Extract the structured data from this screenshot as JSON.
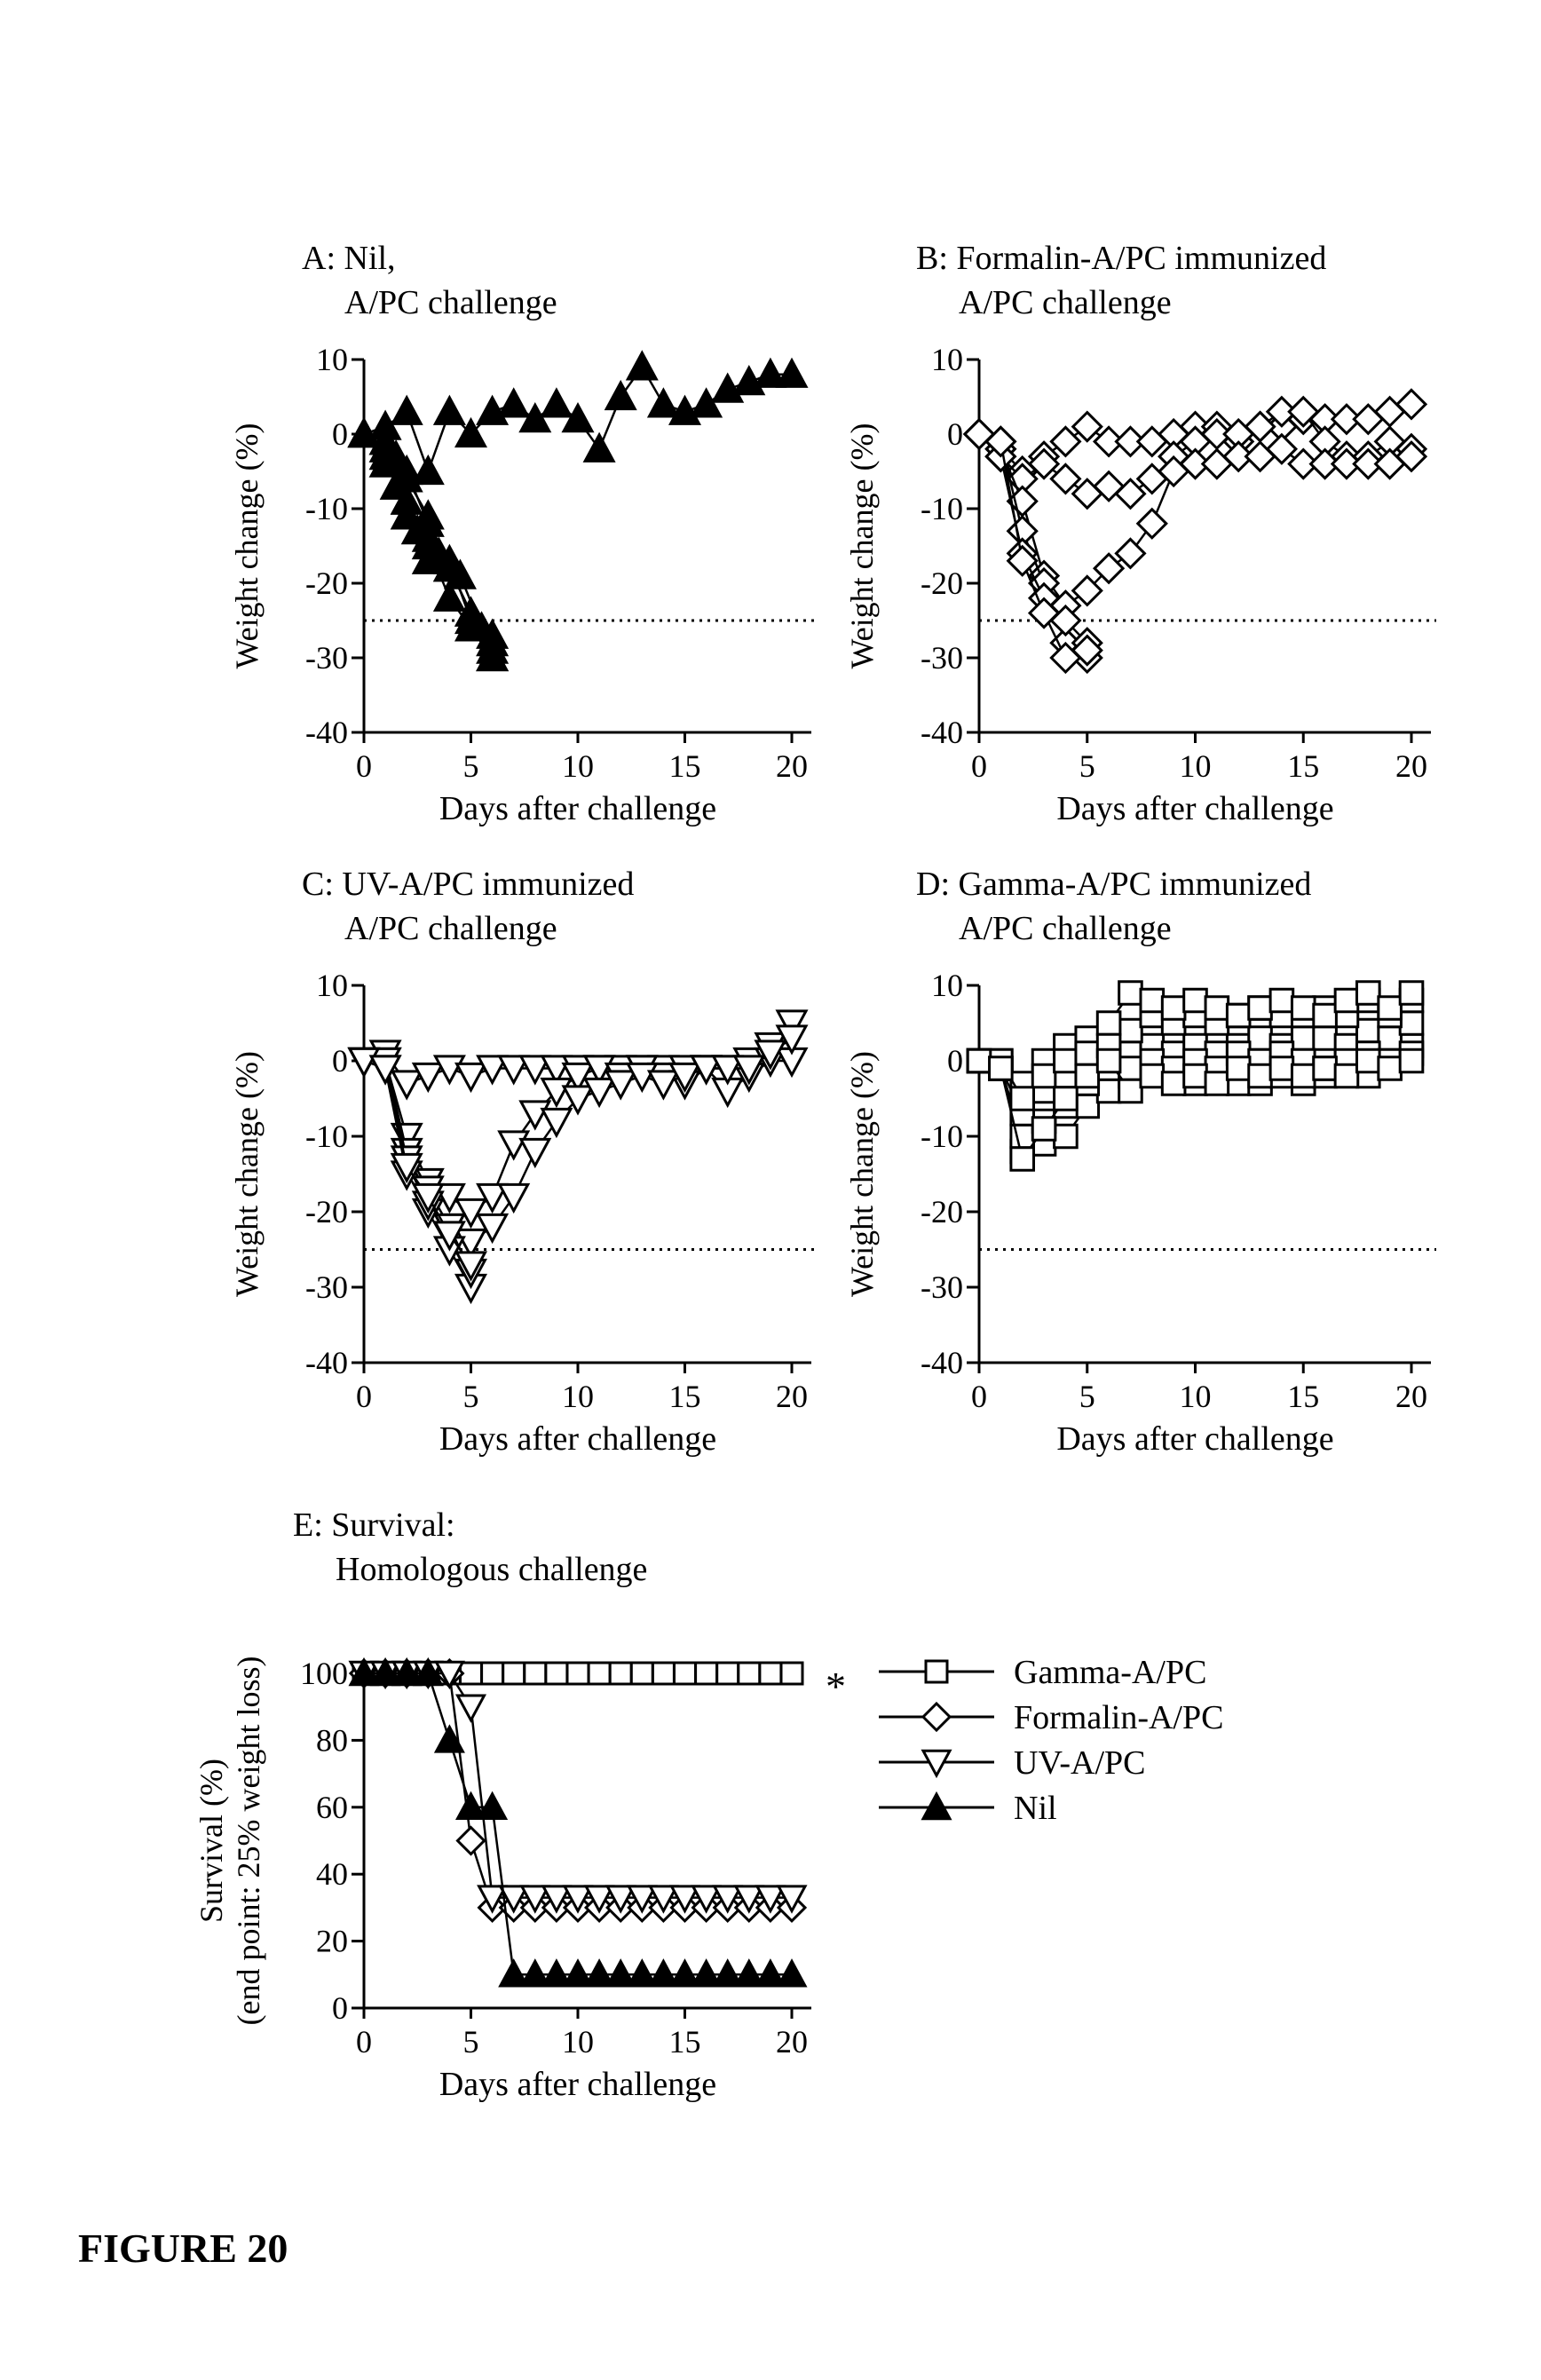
{
  "figure_caption": "FIGURE 20",
  "chart_data": [
    {
      "id": "A",
      "type": "line",
      "title": "A: Nil,",
      "subtitle": "A/PC challenge",
      "xlabel": "Days after challenge",
      "ylabel": "Weight change (%)",
      "xlim": [
        0,
        20
      ],
      "ylim": [
        -40,
        10
      ],
      "xticks": [
        0,
        5,
        10,
        15,
        20
      ],
      "yticks": [
        10,
        0,
        -10,
        -20,
        -30,
        -40
      ],
      "threshold": -25,
      "marker": "triangle-filled",
      "series": [
        {
          "x": [
            0,
            1,
            2,
            3,
            4,
            5,
            6,
            7,
            8,
            9,
            10,
            11,
            12,
            13,
            14,
            15,
            16,
            17,
            18,
            19,
            20
          ],
          "y": [
            0,
            1,
            3,
            -5,
            3,
            0,
            3,
            4,
            2,
            4,
            2,
            -2,
            5,
            9,
            4,
            3,
            4,
            6,
            7,
            8,
            8
          ]
        },
        {
          "x": [
            0,
            1,
            1.5,
            2,
            3,
            4,
            5,
            6
          ],
          "y": [
            0,
            -4,
            -3,
            -11,
            -15,
            -22,
            -26,
            -30
          ]
        },
        {
          "x": [
            0,
            1,
            1.5,
            2,
            2.5,
            3,
            4,
            5,
            6
          ],
          "y": [
            0,
            -1,
            -7,
            -9,
            -13,
            -17,
            -18,
            -24,
            -29
          ]
        },
        {
          "x": [
            0,
            1,
            2,
            3,
            4,
            5,
            6
          ],
          "y": [
            0,
            -3,
            -5,
            -12,
            -17,
            -25,
            -28
          ]
        },
        {
          "x": [
            0,
            1,
            2,
            3,
            4,
            5,
            6
          ],
          "y": [
            0,
            -2,
            -9,
            -14,
            -18,
            -24,
            -27
          ]
        },
        {
          "x": [
            0,
            1,
            2,
            3,
            3.5,
            4.5,
            5.5,
            6
          ],
          "y": [
            0,
            -1,
            -6,
            -11,
            -16,
            -19,
            -26,
            -30
          ]
        }
      ]
    },
    {
      "id": "B",
      "type": "line",
      "title": "B: Formalin-A/PC immunized",
      "subtitle": "A/PC challenge",
      "xlabel": "Days after challenge",
      "ylabel": "Weight change (%)",
      "xlim": [
        0,
        20
      ],
      "ylim": [
        -40,
        10
      ],
      "xticks": [
        0,
        5,
        10,
        15,
        20
      ],
      "yticks": [
        10,
        0,
        -10,
        -20,
        -30,
        -40
      ],
      "threshold": -25,
      "marker": "diamond-open",
      "series": [
        {
          "x": [
            0,
            1,
            2,
            3,
            4,
            5,
            6,
            7,
            8,
            9,
            10,
            11,
            12,
            13,
            14,
            15,
            16,
            17,
            18,
            19,
            20
          ],
          "y": [
            0,
            -2,
            -5,
            -3,
            -1,
            1,
            -1,
            -1,
            -1,
            0,
            1,
            1,
            -1,
            1,
            1,
            2,
            2,
            2,
            2,
            3,
            4
          ]
        },
        {
          "x": [
            0,
            1,
            2,
            3,
            4,
            5,
            6,
            7,
            8,
            9,
            10,
            11,
            12,
            13,
            14,
            15,
            16,
            17,
            18,
            19,
            20
          ],
          "y": [
            0,
            -3,
            -6,
            -4,
            -6,
            -8,
            -7,
            -8,
            -6,
            -3,
            -1,
            0,
            0,
            1,
            3,
            3,
            -1,
            -3,
            -3,
            -1,
            -2
          ]
        },
        {
          "x": [
            0,
            1,
            2,
            3,
            4,
            5,
            6,
            7,
            8,
            9,
            10,
            11,
            12,
            13,
            14,
            15,
            16,
            17,
            18,
            19,
            20
          ],
          "y": [
            0,
            -2,
            -9,
            -19,
            -23,
            -21,
            -18,
            -16,
            -12,
            -5,
            -4,
            -4,
            -3,
            -3,
            -2,
            -4,
            -4,
            -4,
            -4,
            -4,
            -3
          ]
        },
        {
          "x": [
            0,
            1,
            2,
            3,
            4,
            5
          ],
          "y": [
            0,
            -1,
            -13,
            -20,
            -28,
            -30
          ]
        },
        {
          "x": [
            0,
            1,
            2,
            3,
            4,
            5
          ],
          "y": [
            0,
            -3,
            -16,
            -22,
            -25,
            -28
          ]
        },
        {
          "x": [
            0,
            1,
            2,
            3,
            4,
            5
          ],
          "y": [
            0,
            -1,
            -17,
            -24,
            -30,
            -29
          ]
        }
      ]
    },
    {
      "id": "C",
      "type": "line",
      "title": "C: UV-A/PC immunized",
      "subtitle": "A/PC challenge",
      "xlabel": "Days after challenge",
      "ylabel": "Weight change (%)",
      "xlim": [
        0,
        20
      ],
      "ylim": [
        -40,
        10
      ],
      "xticks": [
        0,
        5,
        10,
        15,
        20
      ],
      "yticks": [
        10,
        0,
        -10,
        -20,
        -30,
        -40
      ],
      "threshold": -25,
      "marker": "triangle-down-open",
      "series": [
        {
          "x": [
            0,
            1,
            2,
            3,
            4,
            5,
            6,
            7,
            8,
            9,
            10,
            11,
            12,
            13,
            14,
            15,
            16,
            17,
            18,
            19,
            20
          ],
          "y": [
            0,
            1,
            -3,
            -2,
            -1,
            -2,
            -1,
            -1,
            -1,
            -1,
            -1,
            -1,
            -1,
            -1,
            -1,
            -1,
            -1,
            -1,
            0,
            2,
            5
          ]
        },
        {
          "x": [
            0,
            1,
            2,
            3,
            4,
            5,
            6,
            7,
            8,
            9,
            10,
            11,
            12,
            13,
            14,
            15,
            16,
            17,
            18,
            19,
            20
          ],
          "y": [
            0,
            0,
            -10,
            -16,
            -18,
            -20,
            -18,
            -11,
            -7,
            -4,
            -2,
            -1,
            -2,
            -1,
            -2,
            -3,
            -1,
            -4,
            -2,
            0,
            0
          ]
        },
        {
          "x": [
            0,
            1,
            2,
            3,
            4,
            5,
            6,
            7,
            8,
            9,
            10,
            11,
            12,
            13,
            14,
            15,
            16,
            17,
            18,
            19,
            20
          ],
          "y": [
            0,
            0,
            -12,
            -17,
            -22,
            -24,
            -22,
            -18,
            -12,
            -8,
            -5,
            -4,
            -3,
            -2,
            -3,
            -2,
            -1,
            -1,
            -1,
            1,
            3
          ]
        },
        {
          "x": [
            0,
            1,
            2,
            3,
            4,
            5
          ],
          "y": [
            0,
            0,
            -13,
            -20,
            -25,
            -30
          ]
        },
        {
          "x": [
            0,
            1,
            2,
            3,
            4,
            5
          ],
          "y": [
            0,
            -1,
            -15,
            -19,
            -22,
            -28
          ]
        },
        {
          "x": [
            0,
            1,
            2,
            3,
            4,
            5
          ],
          "y": [
            0,
            -1,
            -14,
            -18,
            -23,
            -27
          ]
        }
      ]
    },
    {
      "id": "D",
      "type": "line",
      "title": "D: Gamma-A/PC immunized",
      "subtitle": "A/PC challenge",
      "xlabel": "Days after challenge",
      "ylabel": "Weight change (%)",
      "xlim": [
        0,
        20
      ],
      "ylim": [
        -40,
        10
      ],
      "xticks": [
        0,
        5,
        10,
        15,
        20
      ],
      "yticks": [
        10,
        0,
        -10,
        -20,
        -30,
        -40
      ],
      "threshold": -25,
      "marker": "square-open",
      "series": [
        {
          "x": [
            0,
            1,
            2,
            3,
            4,
            5,
            6,
            7,
            8,
            9,
            10,
            11,
            12,
            13,
            14,
            15,
            16,
            17,
            18,
            19,
            20
          ],
          "y": [
            0,
            -1,
            -12,
            -11,
            -10,
            -6,
            -4,
            -2,
            -1,
            -2,
            -3,
            -2,
            -3,
            -3,
            -2,
            -3,
            -2,
            -1,
            -2,
            0,
            2
          ]
        },
        {
          "x": [
            0,
            1,
            2,
            3,
            4,
            5,
            6,
            7,
            8,
            9,
            10,
            11,
            12,
            13,
            14,
            15,
            16,
            17,
            18,
            19,
            20
          ],
          "y": [
            0,
            -1,
            -10,
            -8,
            -6,
            -3,
            -1,
            1,
            2,
            1,
            2,
            1,
            2,
            3,
            2,
            3,
            3,
            2,
            4,
            3,
            5
          ]
        },
        {
          "x": [
            0,
            1,
            2,
            3,
            4,
            5,
            6,
            7,
            8,
            9,
            10,
            11,
            12,
            13,
            14,
            15,
            16,
            17,
            18,
            19,
            20
          ],
          "y": [
            0,
            -1,
            -7,
            -4,
            -2,
            1,
            3,
            4,
            6,
            5,
            6,
            5,
            6,
            7,
            6,
            6,
            7,
            6,
            8,
            6,
            8
          ]
        },
        {
          "x": [
            0,
            1,
            2,
            3,
            4,
            5,
            6,
            7,
            8,
            9,
            10,
            11,
            12,
            13,
            14,
            15,
            16,
            17,
            18,
            19,
            20
          ],
          "y": [
            0,
            0,
            -3,
            0,
            2,
            3,
            5,
            9,
            8,
            7,
            8,
            7,
            6,
            7,
            8,
            7,
            6,
            8,
            9,
            7,
            9
          ]
        },
        {
          "x": [
            0,
            1,
            2,
            3,
            4,
            5,
            6,
            7,
            8,
            9,
            10,
            11,
            12,
            13,
            14,
            15,
            16,
            17,
            18,
            19,
            20
          ],
          "y": [
            0,
            0,
            -5,
            -2,
            0,
            1,
            2,
            -1,
            0,
            -1,
            0,
            -1,
            1,
            0,
            1,
            0,
            -1,
            0,
            1,
            0,
            1
          ]
        },
        {
          "x": [
            0,
            1,
            2,
            3,
            4,
            5,
            6,
            7,
            8,
            9,
            10,
            11,
            12,
            13,
            14,
            15,
            16,
            17,
            18,
            19,
            20
          ],
          "y": [
            0,
            -1,
            -13,
            -9,
            -5,
            -2,
            0,
            -4,
            -2,
            -3,
            -2,
            -3,
            -1,
            -2,
            -1,
            -2,
            -1,
            -2,
            0,
            -1,
            0
          ]
        }
      ]
    },
    {
      "id": "E",
      "type": "line",
      "title": "E: Survival:",
      "subtitle": "Homologous challenge",
      "xlabel": "Days after challenge",
      "ylabel_line1": "Survival (%)",
      "ylabel_line2": "(end point: 25% weight loss)",
      "xlim": [
        0,
        20
      ],
      "ylim": [
        0,
        100
      ],
      "xticks": [
        0,
        5,
        10,
        15,
        20
      ],
      "yticks": [
        100,
        80,
        60,
        40,
        20,
        0
      ],
      "annotation": "*",
      "series": [
        {
          "name": "Gamma-A/PC",
          "marker": "square-open",
          "x": [
            0,
            1,
            2,
            3,
            4,
            5,
            6,
            7,
            8,
            9,
            10,
            11,
            12,
            13,
            14,
            15,
            16,
            17,
            18,
            19,
            20
          ],
          "y": [
            100,
            100,
            100,
            100,
            100,
            100,
            100,
            100,
            100,
            100,
            100,
            100,
            100,
            100,
            100,
            100,
            100,
            100,
            100,
            100,
            100
          ]
        },
        {
          "name": "Formalin-A/PC",
          "marker": "diamond-open",
          "x": [
            0,
            1,
            2,
            3,
            4,
            5,
            6,
            7,
            8,
            9,
            10,
            11,
            12,
            13,
            14,
            15,
            16,
            17,
            18,
            19,
            20
          ],
          "y": [
            100,
            100,
            100,
            100,
            100,
            50,
            30,
            30,
            30,
            30,
            30,
            30,
            30,
            30,
            30,
            30,
            30,
            30,
            30,
            30,
            30
          ]
        },
        {
          "name": "UV-A/PC",
          "marker": "triangle-down-open",
          "x": [
            0,
            1,
            2,
            3,
            4,
            5,
            6,
            7,
            8,
            9,
            10,
            11,
            12,
            13,
            14,
            15,
            16,
            17,
            18,
            19,
            20
          ],
          "y": [
            100,
            100,
            100,
            100,
            100,
            90,
            33,
            33,
            33,
            33,
            33,
            33,
            33,
            33,
            33,
            33,
            33,
            33,
            33,
            33,
            33
          ]
        },
        {
          "name": "Nil",
          "marker": "triangle-filled",
          "x": [
            0,
            1,
            2,
            3,
            4,
            5,
            6,
            7,
            8,
            9,
            10,
            11,
            12,
            13,
            14,
            15,
            16,
            17,
            18,
            19,
            20
          ],
          "y": [
            100,
            100,
            100,
            100,
            80,
            60,
            60,
            10,
            10,
            10,
            10,
            10,
            10,
            10,
            10,
            10,
            10,
            10,
            10,
            10,
            10
          ]
        }
      ]
    }
  ]
}
